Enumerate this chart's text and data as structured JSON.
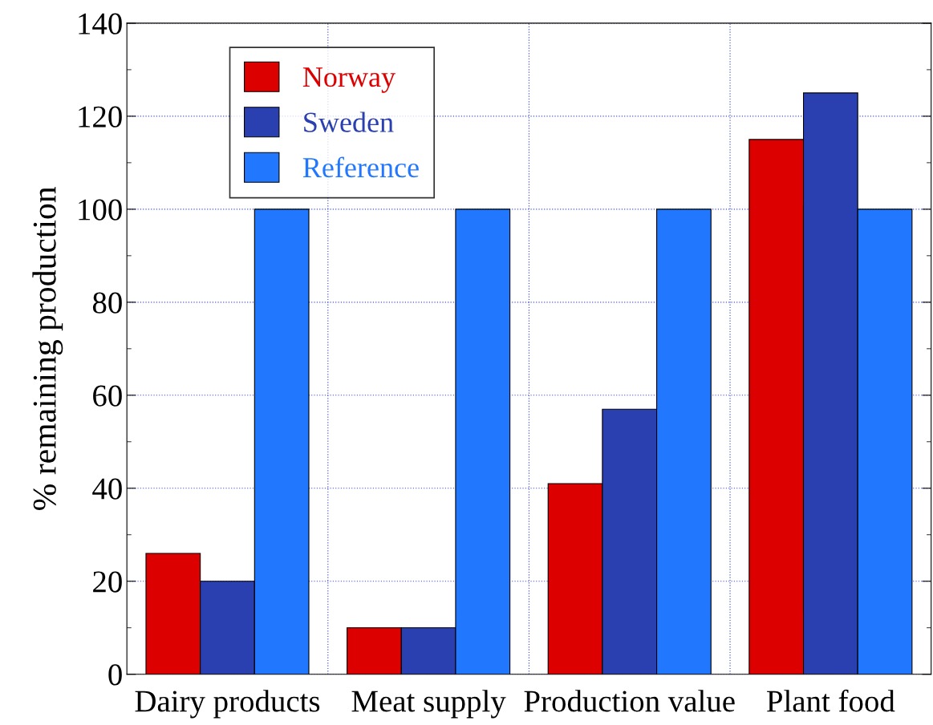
{
  "chart_data": {
    "type": "bar",
    "ylabel": "% remaining production",
    "categories": [
      "Dairy products",
      "Meat supply",
      "Production value",
      "Plant food"
    ],
    "series": [
      {
        "name": "Norway",
        "color": "#dd0000",
        "values": [
          26,
          10,
          41,
          115
        ]
      },
      {
        "name": "Sweden",
        "color": "#2a3fb0",
        "values": [
          20,
          10,
          57,
          125
        ]
      },
      {
        "name": "Reference",
        "color": "#2277ff",
        "values": [
          100,
          100,
          100,
          100
        ]
      }
    ],
    "ylim": [
      0,
      140
    ],
    "yticks": [
      0,
      20,
      40,
      60,
      80,
      100,
      120,
      140
    ],
    "grid": true,
    "legend": "top left"
  }
}
